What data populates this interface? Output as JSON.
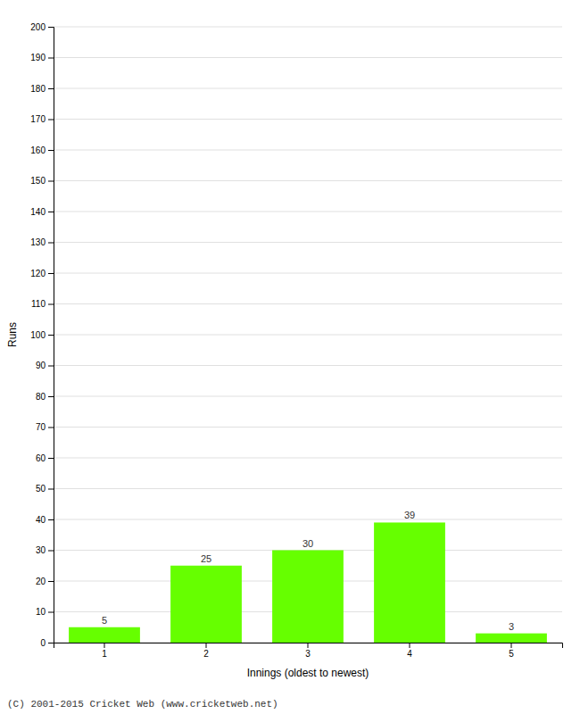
{
  "chart_data": {
    "type": "bar",
    "categories": [
      "1",
      "2",
      "3",
      "4",
      "5"
    ],
    "values": [
      5,
      25,
      30,
      39,
      3
    ],
    "color": "#66ff00",
    "xlabel": "Innings (oldest to newest)",
    "ylabel": "Runs",
    "ylim": [
      0,
      200
    ],
    "yticks": [
      0,
      10,
      20,
      30,
      40,
      50,
      60,
      70,
      80,
      90,
      100,
      110,
      120,
      130,
      140,
      150,
      160,
      170,
      180,
      190,
      200
    ],
    "grid": true,
    "data_labels": true,
    "footer": "(C) 2001-2015 Cricket Web (www.cricketweb.net)"
  }
}
